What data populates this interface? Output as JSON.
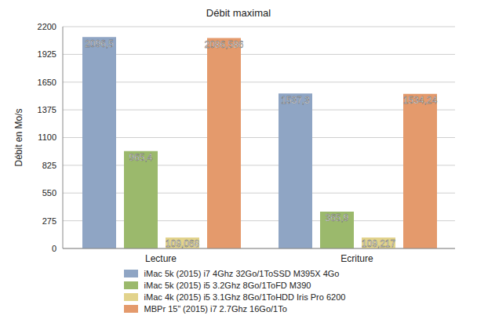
{
  "chart_data": {
    "type": "bar",
    "title": "Débit maximal",
    "y_label": "Débit en Mo/s",
    "categories": [
      "Lecture",
      "Ecriture"
    ],
    "series": [
      {
        "name": "iMac 5k (2015) i7 4Ghz 32Go/1ToSSD M395X 4Go",
        "color": "#8fa5c4",
        "values": [
          2096.5,
          1537.3
        ],
        "value_labels": [
          "2096,5",
          "1537,3"
        ]
      },
      {
        "name": "iMac 5k (2015) i5 3.2Ghz 8Go/1ToFD M390",
        "color": "#9bb96c",
        "values": [
          965.4,
          365.9
        ],
        "value_labels": [
          "965,4",
          "365,9"
        ]
      },
      {
        "name": "iMac 4k (2015) i5 3.1Ghz 8Go/1ToHDD Iris Pro 6200",
        "color": "#e2d38c",
        "values": [
          109.068,
          109.217
        ],
        "value_labels": [
          "109,068",
          "109,217"
        ]
      },
      {
        "name": "MBPr 15” (2015) i7 2.7Ghz 16Go/1To",
        "color": "#e49a6c",
        "values": [
          2086.586,
          1534.24
        ],
        "value_labels": [
          "2086,586",
          "1534,24"
        ]
      }
    ],
    "ylim": [
      0,
      2200
    ],
    "yticks": [
      0,
      275,
      550,
      825,
      1100,
      1375,
      1650,
      1925,
      2200
    ],
    "grid": true,
    "legend": "bottom",
    "data_labels": true
  }
}
